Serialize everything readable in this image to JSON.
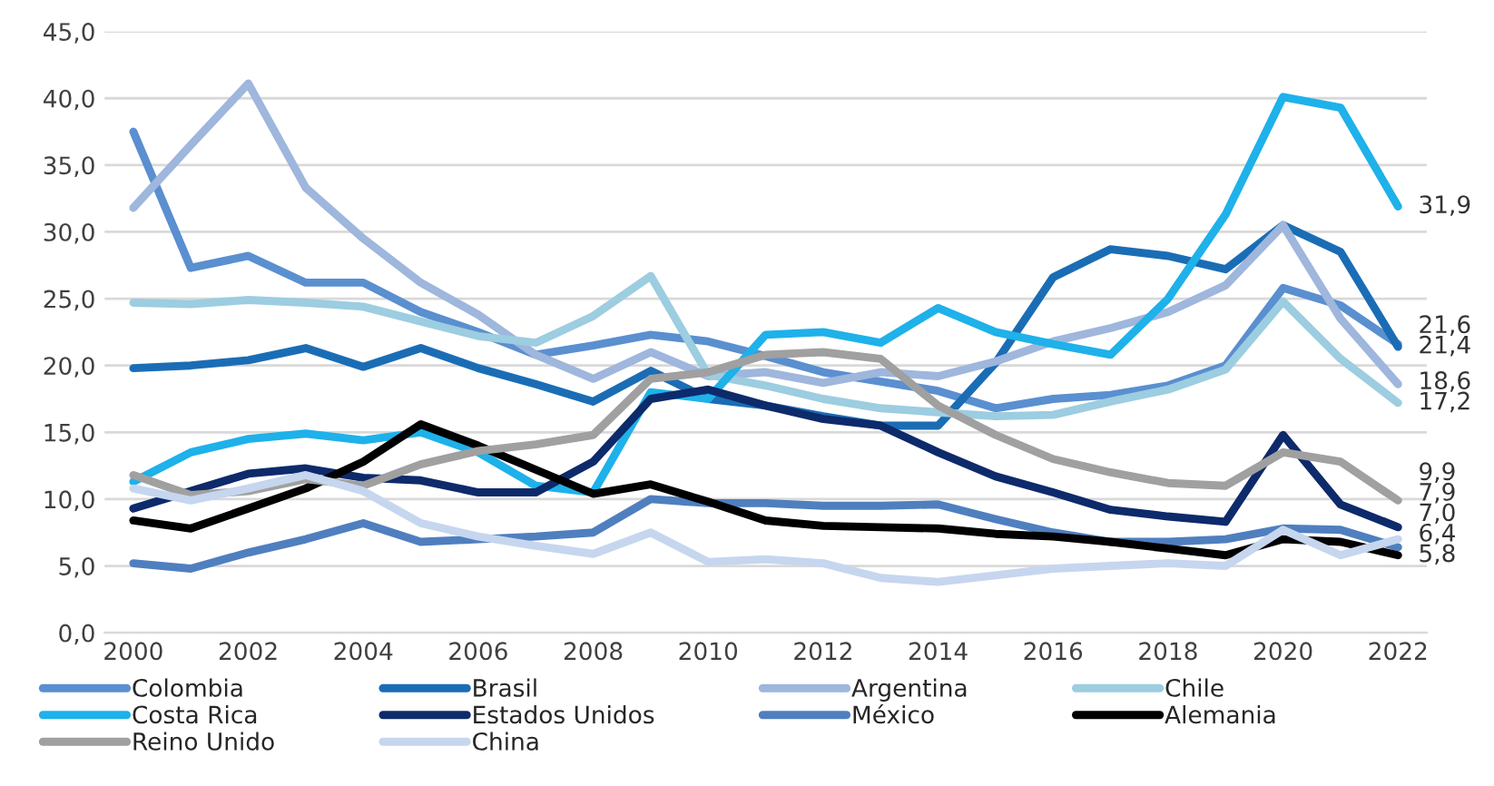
{
  "chart_data": {
    "type": "line",
    "x": [
      2000,
      2001,
      2002,
      2003,
      2004,
      2005,
      2006,
      2007,
      2008,
      2009,
      2010,
      2011,
      2012,
      2013,
      2014,
      2015,
      2016,
      2017,
      2018,
      2019,
      2020,
      2021,
      2022
    ],
    "series": [
      {
        "name": "Colombia",
        "color": "#5a8fd0",
        "values": [
          37.5,
          27.3,
          28.2,
          26.2,
          26.2,
          24.0,
          22.5,
          20.8,
          21.5,
          22.3,
          21.8,
          20.7,
          19.5,
          18.8,
          18.1,
          16.8,
          17.5,
          17.8,
          18.5,
          20.0,
          25.8,
          24.5,
          21.6
        ],
        "value_labels": [
          null,
          null,
          null,
          null,
          null,
          null,
          null,
          null,
          null,
          null,
          null,
          null,
          null,
          null,
          null,
          null,
          null,
          null,
          null,
          null,
          null,
          null,
          "21,6"
        ]
      },
      {
        "name": "Brasil",
        "color": "#1a6db5",
        "values": [
          19.8,
          20.0,
          20.4,
          21.3,
          19.9,
          21.3,
          19.8,
          18.6,
          17.3,
          19.6,
          17.5,
          17.0,
          16.2,
          15.5,
          15.5,
          20.2,
          26.6,
          28.7,
          28.2,
          27.2,
          30.5,
          28.5,
          21.4
        ],
        "value_labels": [
          null,
          null,
          null,
          null,
          null,
          null,
          null,
          null,
          null,
          null,
          null,
          null,
          null,
          null,
          null,
          null,
          null,
          null,
          null,
          null,
          null,
          null,
          "21,4"
        ]
      },
      {
        "name": "Argentina",
        "color": "#9fb6dd",
        "values": [
          31.8,
          36.5,
          41.1,
          33.3,
          29.5,
          26.2,
          23.8,
          20.8,
          19.0,
          21.0,
          19.2,
          19.5,
          18.7,
          19.5,
          19.2,
          20.3,
          21.8,
          22.8,
          24.0,
          26.0,
          30.5,
          23.5,
          18.6
        ],
        "value_labels": [
          null,
          null,
          null,
          null,
          null,
          null,
          null,
          null,
          null,
          null,
          null,
          null,
          null,
          null,
          null,
          null,
          null,
          null,
          null,
          null,
          null,
          null,
          "18,6"
        ]
      },
      {
        "name": "Chile",
        "color": "#9ccde0",
        "values": [
          24.7,
          24.6,
          24.9,
          24.7,
          24.4,
          23.3,
          22.2,
          21.7,
          23.7,
          26.7,
          19.3,
          18.5,
          17.5,
          16.8,
          16.5,
          16.2,
          16.3,
          17.3,
          18.2,
          19.7,
          24.8,
          20.5,
          17.2
        ],
        "value_labels": [
          null,
          null,
          null,
          null,
          null,
          null,
          null,
          null,
          null,
          null,
          null,
          null,
          null,
          null,
          null,
          null,
          null,
          null,
          null,
          null,
          null,
          null,
          "17,2"
        ]
      },
      {
        "name": "Costa Rica",
        "color": "#1eb1ea",
        "values": [
          11.3,
          13.5,
          14.5,
          14.9,
          14.4,
          15.0,
          13.5,
          11.0,
          10.5,
          18.0,
          17.5,
          22.3,
          22.5,
          21.7,
          24.3,
          22.5,
          21.6,
          20.8,
          25.0,
          31.3,
          40.1,
          39.3,
          31.9
        ],
        "value_labels": [
          null,
          null,
          null,
          null,
          null,
          null,
          null,
          null,
          null,
          null,
          null,
          null,
          null,
          null,
          null,
          null,
          null,
          null,
          null,
          null,
          null,
          null,
          "31,9"
        ]
      },
      {
        "name": "Estados Unidos",
        "color": "#0d2a6b",
        "values": [
          9.3,
          10.6,
          11.9,
          12.3,
          11.6,
          11.4,
          10.5,
          10.5,
          12.8,
          17.5,
          18.2,
          17.0,
          16.0,
          15.5,
          13.5,
          11.7,
          10.5,
          9.2,
          8.7,
          8.3,
          14.8,
          9.6,
          7.9
        ],
        "value_labels": [
          null,
          null,
          null,
          null,
          null,
          null,
          null,
          null,
          null,
          null,
          null,
          null,
          null,
          null,
          null,
          null,
          null,
          null,
          null,
          null,
          null,
          null,
          "7,9"
        ]
      },
      {
        "name": "México",
        "color": "#4f7fbf",
        "values": [
          5.2,
          4.8,
          6.0,
          7.0,
          8.2,
          6.8,
          7.0,
          7.2,
          7.5,
          10.0,
          9.7,
          9.7,
          9.5,
          9.5,
          9.6,
          8.5,
          7.5,
          6.8,
          6.8,
          7.0,
          7.8,
          7.7,
          6.4
        ],
        "value_labels": [
          null,
          null,
          null,
          null,
          null,
          null,
          null,
          null,
          null,
          null,
          null,
          null,
          null,
          null,
          null,
          null,
          null,
          null,
          null,
          null,
          null,
          null,
          "6,4"
        ]
      },
      {
        "name": "Alemania",
        "color": "#000000",
        "values": [
          8.4,
          7.8,
          9.3,
          10.8,
          12.8,
          15.6,
          14.0,
          12.2,
          10.4,
          11.1,
          9.8,
          8.4,
          8.0,
          7.9,
          7.8,
          7.4,
          7.2,
          6.8,
          6.3,
          5.8,
          7.0,
          6.8,
          5.8
        ],
        "value_labels": [
          null,
          null,
          null,
          null,
          null,
          null,
          null,
          null,
          null,
          null,
          null,
          null,
          null,
          null,
          null,
          null,
          null,
          null,
          null,
          null,
          null,
          null,
          "5,8"
        ]
      },
      {
        "name": "Reino Unido",
        "color": "#a0a0a0",
        "values": [
          11.8,
          10.3,
          10.6,
          11.5,
          11.0,
          12.6,
          13.6,
          14.1,
          14.8,
          19.0,
          19.5,
          20.8,
          21.0,
          20.5,
          17.0,
          14.8,
          13.0,
          12.0,
          11.2,
          11.0,
          13.5,
          12.8,
          9.9
        ],
        "value_labels": [
          null,
          null,
          null,
          null,
          null,
          null,
          null,
          null,
          null,
          null,
          null,
          null,
          null,
          null,
          null,
          null,
          null,
          null,
          null,
          null,
          null,
          null,
          "9,9"
        ]
      },
      {
        "name": "China",
        "color": "#c6d6ef",
        "values": [
          10.8,
          9.9,
          10.8,
          11.8,
          10.6,
          8.2,
          7.2,
          6.5,
          5.9,
          7.5,
          5.3,
          5.5,
          5.2,
          4.1,
          3.8,
          4.3,
          4.8,
          5.0,
          5.2,
          5.0,
          7.7,
          5.8,
          7.0
        ],
        "value_labels": [
          null,
          null,
          null,
          null,
          null,
          null,
          null,
          null,
          null,
          null,
          null,
          null,
          null,
          null,
          null,
          null,
          null,
          null,
          null,
          null,
          null,
          null,
          "7,0"
        ]
      }
    ],
    "xlim": [
      1999.5,
      2022.5
    ],
    "xticks": [
      2000,
      2002,
      2004,
      2006,
      2008,
      2010,
      2012,
      2014,
      2016,
      2018,
      2020,
      2022
    ],
    "ylim": [
      0,
      45
    ],
    "yticks": [
      {
        "value": 0,
        "label": "0,0"
      },
      {
        "value": 5,
        "label": "5,0"
      },
      {
        "value": 10,
        "label": "10,0"
      },
      {
        "value": 15,
        "label": "15,0"
      },
      {
        "value": 20,
        "label": "20,0"
      },
      {
        "value": 25,
        "label": "25,0"
      },
      {
        "value": 30,
        "label": "30,0"
      },
      {
        "value": 35,
        "label": "35,0"
      },
      {
        "value": 40,
        "label": "40,0"
      },
      {
        "value": 45,
        "label": "45,0"
      }
    ],
    "grid": "y",
    "legend": "bottom",
    "marker": "none",
    "line_style": "solid"
  }
}
